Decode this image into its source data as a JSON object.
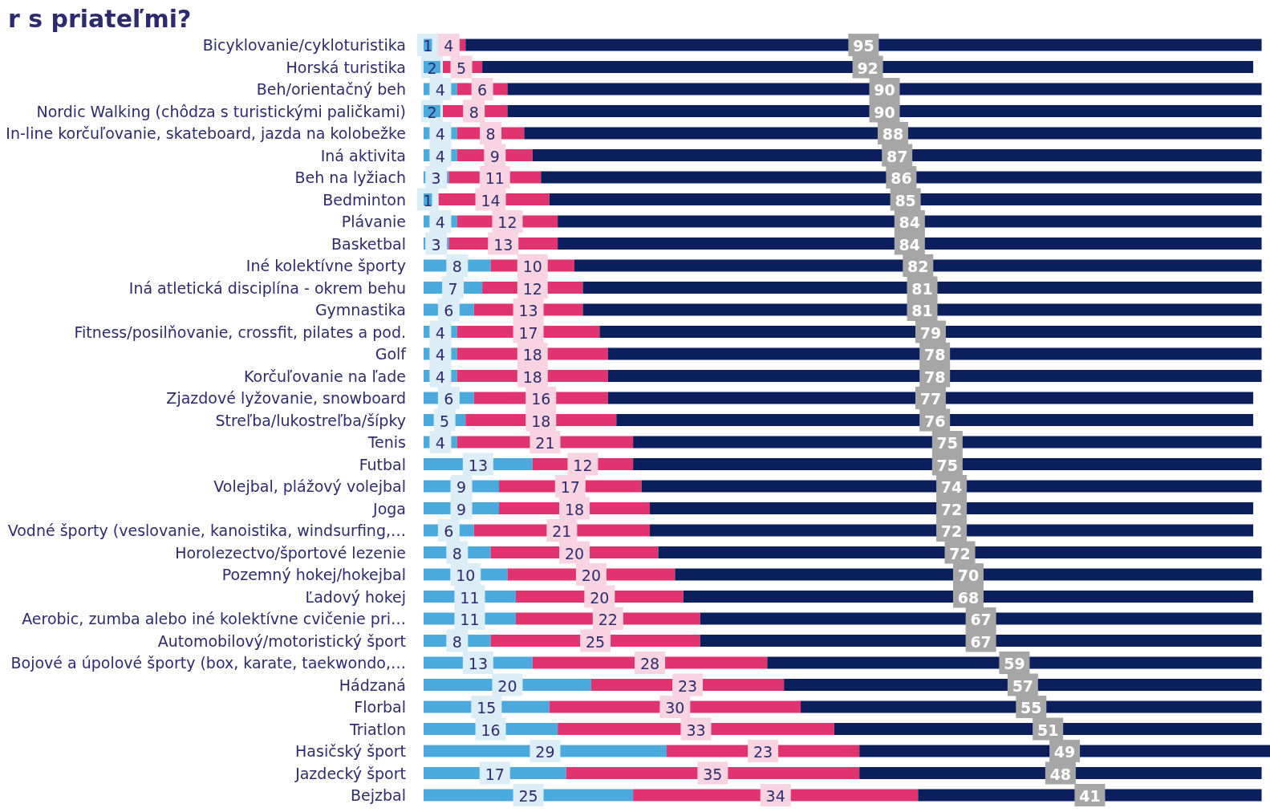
{
  "chart_data": {
    "type": "bar",
    "orientation": "horizontal",
    "stacked": true,
    "data_labels": true,
    "title": "r s priateľmi?",
    "categories": [
      "Bicyklovanie/cykloturistika",
      "Horská turistika",
      "Beh/orientačný beh",
      "Nordic Walking (chôdza s turistickými paličkami)",
      "In-line korčuľovanie, skateboard, jazda na kolobežke",
      "Iná aktivita",
      "Beh na lyžiach",
      "Bedminton",
      "Plávanie",
      "Basketbal",
      "Iné kolektívne športy",
      "Iná atletická disciplína - okrem behu",
      "Gymnastika",
      "Fitness/posilňovanie, crossfit, pilates a pod.",
      "Golf",
      "Korčuľovanie na ľade",
      "Zjazdové lyžovanie, snowboard",
      "Streľba/lukostreľba/šípky",
      "Tenis",
      "Futbal",
      "Volejbal, plážový volejbal",
      "Joga",
      "Vodné športy (veslovanie, kanoistika, windsurfing,…",
      "Horolezectvo/športové lezenie",
      "Pozemný hokej/hokejbal",
      "Ľadový hokej",
      "Aerobic, zumba alebo iné kolektívne cvičenie pri…",
      "Automobilový/motoristický šport",
      "Bojové a úpolové športy (box, karate, taekwondo,…",
      "Hádzaná",
      "Florbal",
      "Triatlon",
      "Hasičský šport",
      "Jazdecký šport",
      "Bejzbal"
    ],
    "series": [
      {
        "color": "#4aaade",
        "values": [
          1,
          2,
          4,
          2,
          4,
          4,
          3,
          1,
          4,
          3,
          8,
          7,
          6,
          4,
          4,
          4,
          6,
          5,
          4,
          13,
          9,
          9,
          6,
          8,
          10,
          11,
          11,
          8,
          13,
          20,
          15,
          16,
          29,
          17,
          25
        ]
      },
      {
        "color": "#e0336f",
        "values": [
          4,
          5,
          6,
          8,
          8,
          9,
          11,
          14,
          12,
          13,
          10,
          12,
          13,
          17,
          18,
          18,
          16,
          18,
          21,
          12,
          17,
          18,
          21,
          20,
          20,
          20,
          22,
          25,
          28,
          23,
          30,
          33,
          23,
          35,
          34
        ]
      },
      {
        "color": "#0b1f5c",
        "values": [
          95,
          92,
          90,
          90,
          88,
          87,
          86,
          85,
          84,
          84,
          82,
          81,
          81,
          79,
          78,
          78,
          77,
          76,
          75,
          75,
          74,
          72,
          72,
          72,
          70,
          68,
          67,
          67,
          59,
          57,
          55,
          51,
          49,
          48,
          41
        ]
      }
    ]
  }
}
